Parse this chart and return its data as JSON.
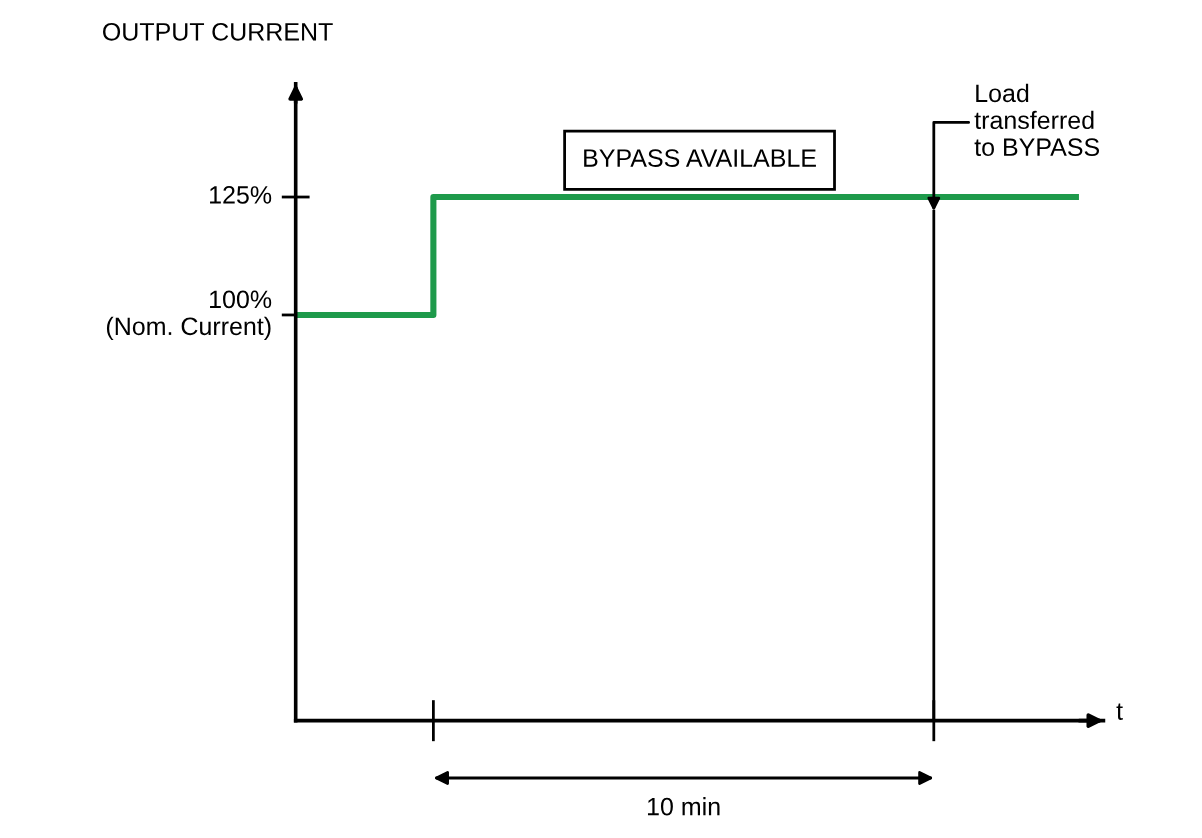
{
  "chart_data": {
    "type": "step",
    "ylabel": "OUTPUT CURRENT",
    "xlabel": "t",
    "categories": [
      null,
      null,
      null,
      null,
      null,
      null,
      null,
      null,
      null,
      null,
      null,
      null,
      null,
      null,
      null,
      null,
      null,
      null
    ],
    "series": [
      {
        "color": "#1e9a4b",
        "values": [
          100,
          100,
          100,
          100,
          125,
          125,
          125,
          125,
          125,
          125,
          125,
          125,
          125,
          125,
          125,
          125,
          125,
          125
        ]
      }
    ],
    "ylim": [
      14,
      149
    ],
    "yticks": [
      {
        "value": 100,
        "label": "100%\n(Nom. Current)"
      },
      {
        "value": 125,
        "label": "125%"
      }
    ],
    "annotations": [
      "BYPASS AVAILABLE",
      "Load\ntransferred\nto BYPASS",
      "10 min"
    ],
    "grid": false,
    "line_style": "solid"
  }
}
